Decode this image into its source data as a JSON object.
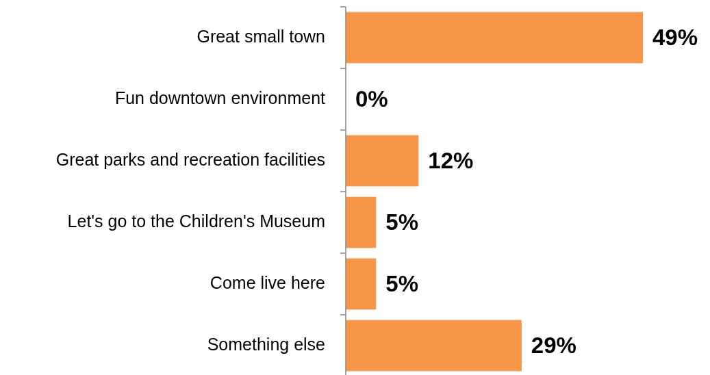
{
  "chart_data": {
    "type": "bar",
    "orientation": "horizontal",
    "categories": [
      "Great small town",
      "Fun downtown environment",
      "Great parks and recreation facilities",
      "Let's go to the Children's Museum",
      "Come live here",
      "Something else"
    ],
    "values": [
      49,
      0,
      12,
      5,
      5,
      29
    ],
    "value_labels": [
      "49%",
      "0%",
      "12%",
      "5%",
      "5%",
      "29%"
    ],
    "color": "#f79646"
  }
}
